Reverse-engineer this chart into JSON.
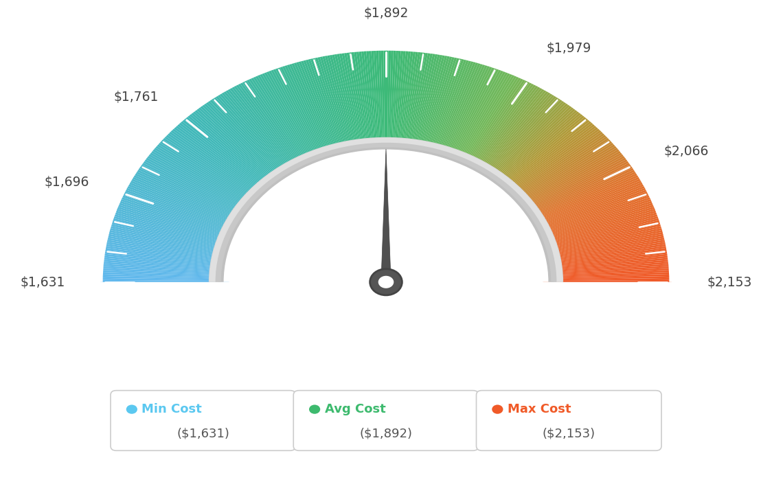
{
  "min_val": 1631,
  "max_val": 2153,
  "avg_val": 1892,
  "labels": [
    "$1,631",
    "$1,696",
    "$1,761",
    "$1,892",
    "$1,979",
    "$2,066",
    "$2,153"
  ],
  "label_values": [
    1631,
    1696,
    1761,
    1892,
    1979,
    2066,
    2153
  ],
  "tick_values": [
    1631,
    1653,
    1675,
    1696,
    1718,
    1740,
    1761,
    1783,
    1805,
    1827,
    1849,
    1871,
    1892,
    1914,
    1936,
    1958,
    1979,
    2001,
    2023,
    2044,
    2066,
    2088,
    2110,
    2131,
    2153
  ],
  "labeled_tick_values": [
    1631,
    1696,
    1761,
    1892,
    1979,
    2066,
    2153
  ],
  "legend_items": [
    {
      "label": "Min Cost",
      "value": "($1,631)",
      "color": "#5bc8f0"
    },
    {
      "label": "Avg Cost",
      "value": "($1,892)",
      "color": "#3dba6e"
    },
    {
      "label": "Max Cost",
      "value": "($2,153)",
      "color": "#f05a28"
    }
  ],
  "bg_color": "#ffffff",
  "needle_value": 1892,
  "color_stops": [
    [
      0.0,
      [
        0.38,
        0.72,
        0.93
      ]
    ],
    [
      0.25,
      [
        0.25,
        0.72,
        0.72
      ]
    ],
    [
      0.5,
      [
        0.24,
        0.73,
        0.47
      ]
    ],
    [
      0.65,
      [
        0.45,
        0.72,
        0.35
      ]
    ],
    [
      0.75,
      [
        0.7,
        0.6,
        0.22
      ]
    ],
    [
      0.85,
      [
        0.88,
        0.45,
        0.18
      ]
    ],
    [
      1.0,
      [
        0.94,
        0.35,
        0.16
      ]
    ]
  ]
}
